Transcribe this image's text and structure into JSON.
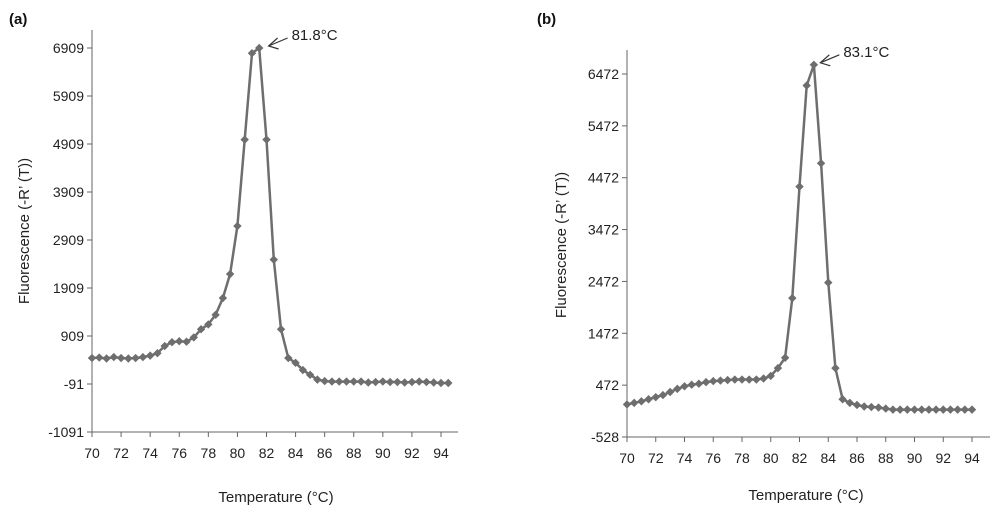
{
  "chart_data": [
    {
      "type": "line",
      "panel_label": "(a)",
      "xlabel": "Temperature (°C)",
      "ylabel": "Fluorescence (-R’ (T))",
      "xlim": [
        70,
        94.5
      ],
      "ylim": [
        -1091,
        6909
      ],
      "xticks": [
        70,
        72,
        74,
        76,
        78,
        80,
        82,
        84,
        86,
        88,
        90,
        92,
        94
      ],
      "yticks": [
        -1091,
        -91,
        909,
        1909,
        2909,
        3909,
        4909,
        5909,
        6909
      ],
      "annotation": {
        "text": "81.8°C",
        "x": 81.8,
        "y": 6909
      },
      "grid": false,
      "color": "#6e6e6e",
      "x": [
        70,
        70.5,
        71,
        71.5,
        72,
        72.5,
        73,
        73.5,
        74,
        74.5,
        75,
        75.5,
        76,
        76.5,
        77,
        77.5,
        78,
        78.5,
        79,
        79.5,
        80,
        80.5,
        81,
        81.5,
        82,
        82.5,
        83,
        83.5,
        84,
        84.5,
        85,
        85.5,
        86,
        86.5,
        87,
        87.5,
        88,
        88.5,
        89,
        89.5,
        90,
        90.5,
        91,
        91.5,
        92,
        92.5,
        93,
        93.5,
        94,
        94.5
      ],
      "values": [
        450,
        460,
        440,
        470,
        450,
        440,
        450,
        470,
        500,
        550,
        700,
        780,
        800,
        790,
        880,
        1050,
        1150,
        1350,
        1700,
        2200,
        3200,
        5000,
        6800,
        6909,
        5000,
        2500,
        1050,
        450,
        350,
        200,
        100,
        0,
        -30,
        -40,
        -40,
        -40,
        -40,
        -40,
        -60,
        -50,
        -40,
        -50,
        -50,
        -60,
        -50,
        -40,
        -50,
        -60,
        -70,
        -70
      ]
    },
    {
      "type": "line",
      "panel_label": "(b)",
      "xlabel": "Temperature (°C)",
      "ylabel": "Fluorescence (-R’ (T))",
      "xlim": [
        70,
        95
      ],
      "ylim": [
        -528,
        7000
      ],
      "xticks": [
        70,
        72,
        74,
        76,
        78,
        80,
        82,
        84,
        86,
        88,
        90,
        92,
        94
      ],
      "yticks": [
        -528,
        472,
        1472,
        2472,
        3472,
        4472,
        5472,
        6472
      ],
      "annotation": {
        "text": "83.1°C",
        "x": 83.1,
        "y": 6650
      },
      "grid": false,
      "color": "#6e6e6e",
      "x": [
        70,
        70.5,
        71,
        71.5,
        72,
        72.5,
        73,
        73.5,
        74,
        74.5,
        75,
        75.5,
        76,
        76.5,
        77,
        77.5,
        78,
        78.5,
        79,
        79.5,
        80,
        80.5,
        81,
        81.5,
        82,
        82.5,
        83,
        83.5,
        84,
        84.5,
        85,
        85.5,
        86,
        86.5,
        87,
        87.5,
        88,
        88.5,
        89,
        89.5,
        90,
        90.5,
        91,
        91.5,
        92,
        92.5,
        93,
        93.5,
        94
      ],
      "values": [
        100,
        130,
        160,
        200,
        240,
        280,
        340,
        400,
        450,
        480,
        500,
        530,
        550,
        560,
        570,
        580,
        580,
        580,
        580,
        600,
        650,
        800,
        1000,
        2150,
        4300,
        6250,
        6650,
        4750,
        2450,
        800,
        200,
        130,
        90,
        60,
        50,
        40,
        20,
        0,
        0,
        0,
        0,
        0,
        0,
        0,
        0,
        0,
        0,
        0,
        0
      ]
    }
  ]
}
